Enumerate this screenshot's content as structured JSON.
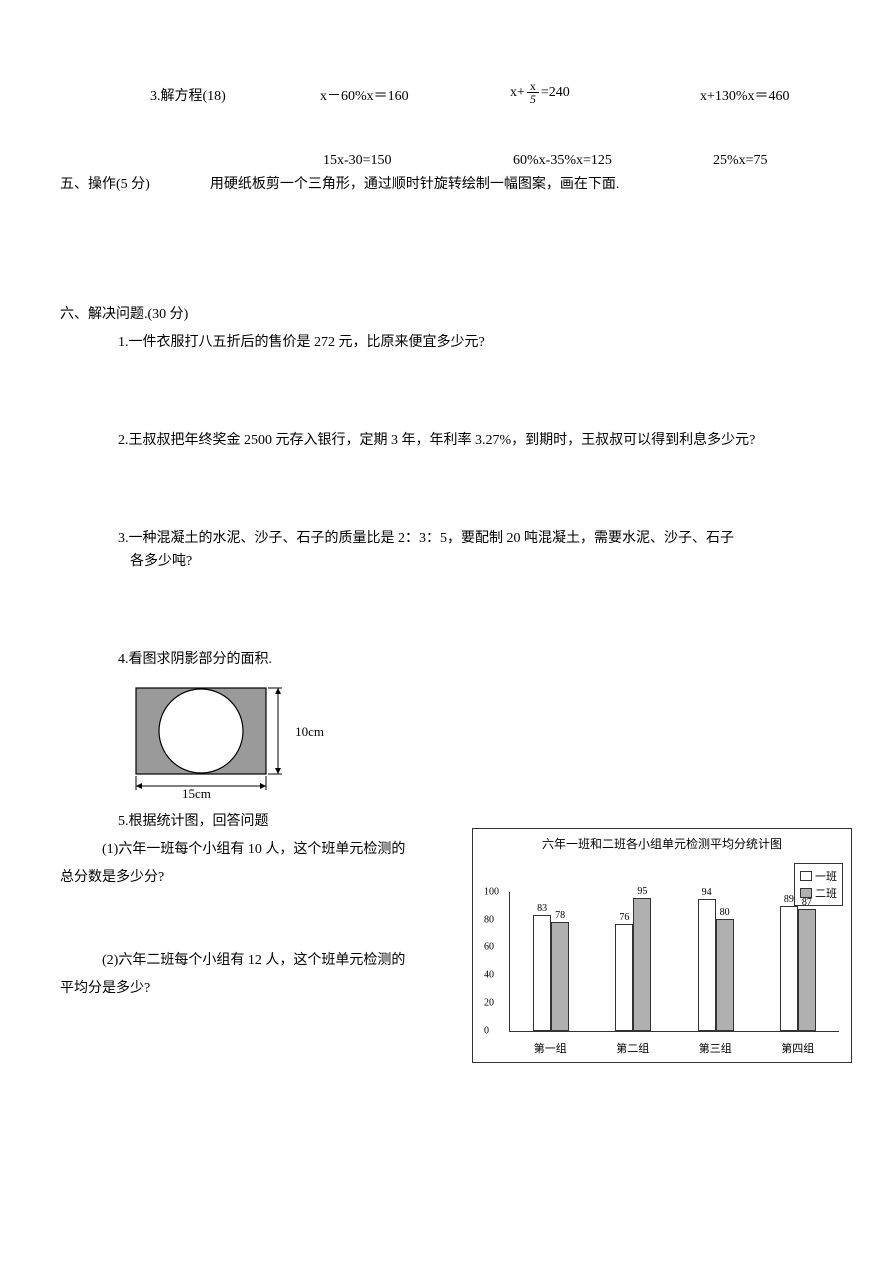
{
  "q3": {
    "label": "3.解方程(18)",
    "eq1": "x－60%x＝160",
    "eq2_pre": "x+",
    "eq2_num": "x",
    "eq2_den": "5",
    "eq2_post": " =240",
    "eq3": "x+130%x＝460",
    "eq4": "15x-30=150",
    "eq5": "60%x-35%x=125",
    "eq6": "25%x=75"
  },
  "sec5": {
    "heading": "五、操作(5 分)",
    "instr": "用硬纸板剪一个三角形，通过顺时针旋转绘制一幅图案，画在下面."
  },
  "sec6": {
    "heading": "六、解决问题.(30 分)",
    "q1": "1.一件衣服打八五折后的售价是 272 元，比原来便宜多少元?",
    "q2": "2.王叔叔把年终奖金 2500 元存入银行，定期 3 年，年利率 3.27%，到期时，王叔叔可以得到利息多少元?",
    "q3a": "3.一种混凝土的水泥、沙子、石子的质量比是 2：3：5，要配制 20 吨混凝土，需要水泥、沙子、石子",
    "q3b": "各多少吨?",
    "q4": "4.看图求阴影部分的面积.",
    "fig": {
      "w_label": "15cm",
      "h_label": "10cm"
    },
    "q5": "5.根据统计图，回答问题",
    "q5_1a": "(1)六年一班每个小组有 10 人，这个班单元检测的",
    "q5_1b": "总分数是多少分?",
    "q5_2a": "(2)六年二班每个小组有 12 人，这个班单元检测的",
    "q5_2b": "平均分是多少?"
  },
  "chart": {
    "title": "六年一班和二班各小组单元检测平均分统计图",
    "legend": {
      "a": "一班",
      "b": "二班"
    },
    "colors": {
      "a": "#ffffff",
      "b": "#b0b0b0",
      "border": "#333333",
      "grid": "#bbbbbb"
    },
    "ylim": [
      0,
      100
    ],
    "yticks": [
      0,
      20,
      40,
      60,
      80,
      100
    ],
    "groups": [
      "第一组",
      "第二组",
      "第三组",
      "第四组"
    ],
    "series_a": [
      83,
      76,
      94,
      89
    ],
    "series_b": [
      78,
      95,
      80,
      87
    ]
  }
}
